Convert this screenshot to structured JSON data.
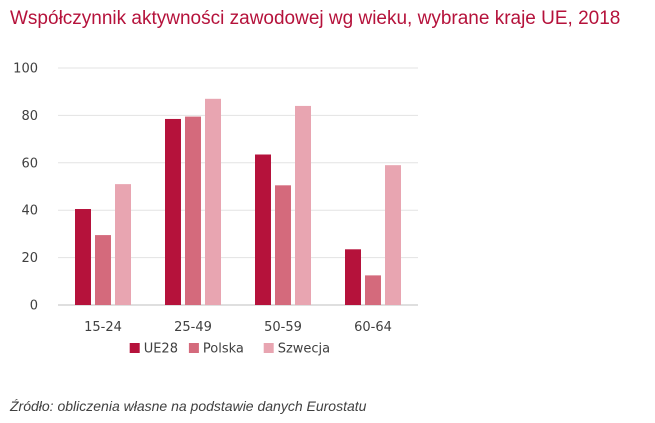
{
  "title": "Współczynnik aktywności zawodowej wg wieku, wybrane kraje UE, 2018",
  "source": "Źródło: obliczenia własne na podstawie danych Eurostatu",
  "chart_data": {
    "type": "bar",
    "title": "Współczynnik aktywności zawodowej wg wieku, wybrane kraje UE, 2018",
    "xlabel": "",
    "ylabel": "",
    "categories": [
      "15-24",
      "25-49",
      "50-59",
      "60-64"
    ],
    "series": [
      {
        "name": "UE28",
        "values": [
          40.5,
          78.5,
          63.5,
          23.5
        ],
        "color": "#b5123b"
      },
      {
        "name": "Polska",
        "values": [
          29.5,
          79.5,
          50.5,
          12.5
        ],
        "color": "#d46a7c"
      },
      {
        "name": "Szwecja",
        "values": [
          51,
          87,
          84,
          59
        ],
        "color": "#e8a5b1"
      }
    ],
    "ylim": [
      0,
      100
    ],
    "yticks": [
      "0",
      "20",
      "40",
      "60",
      "80",
      "100"
    ],
    "grid": true,
    "legend_position": "bottom"
  }
}
